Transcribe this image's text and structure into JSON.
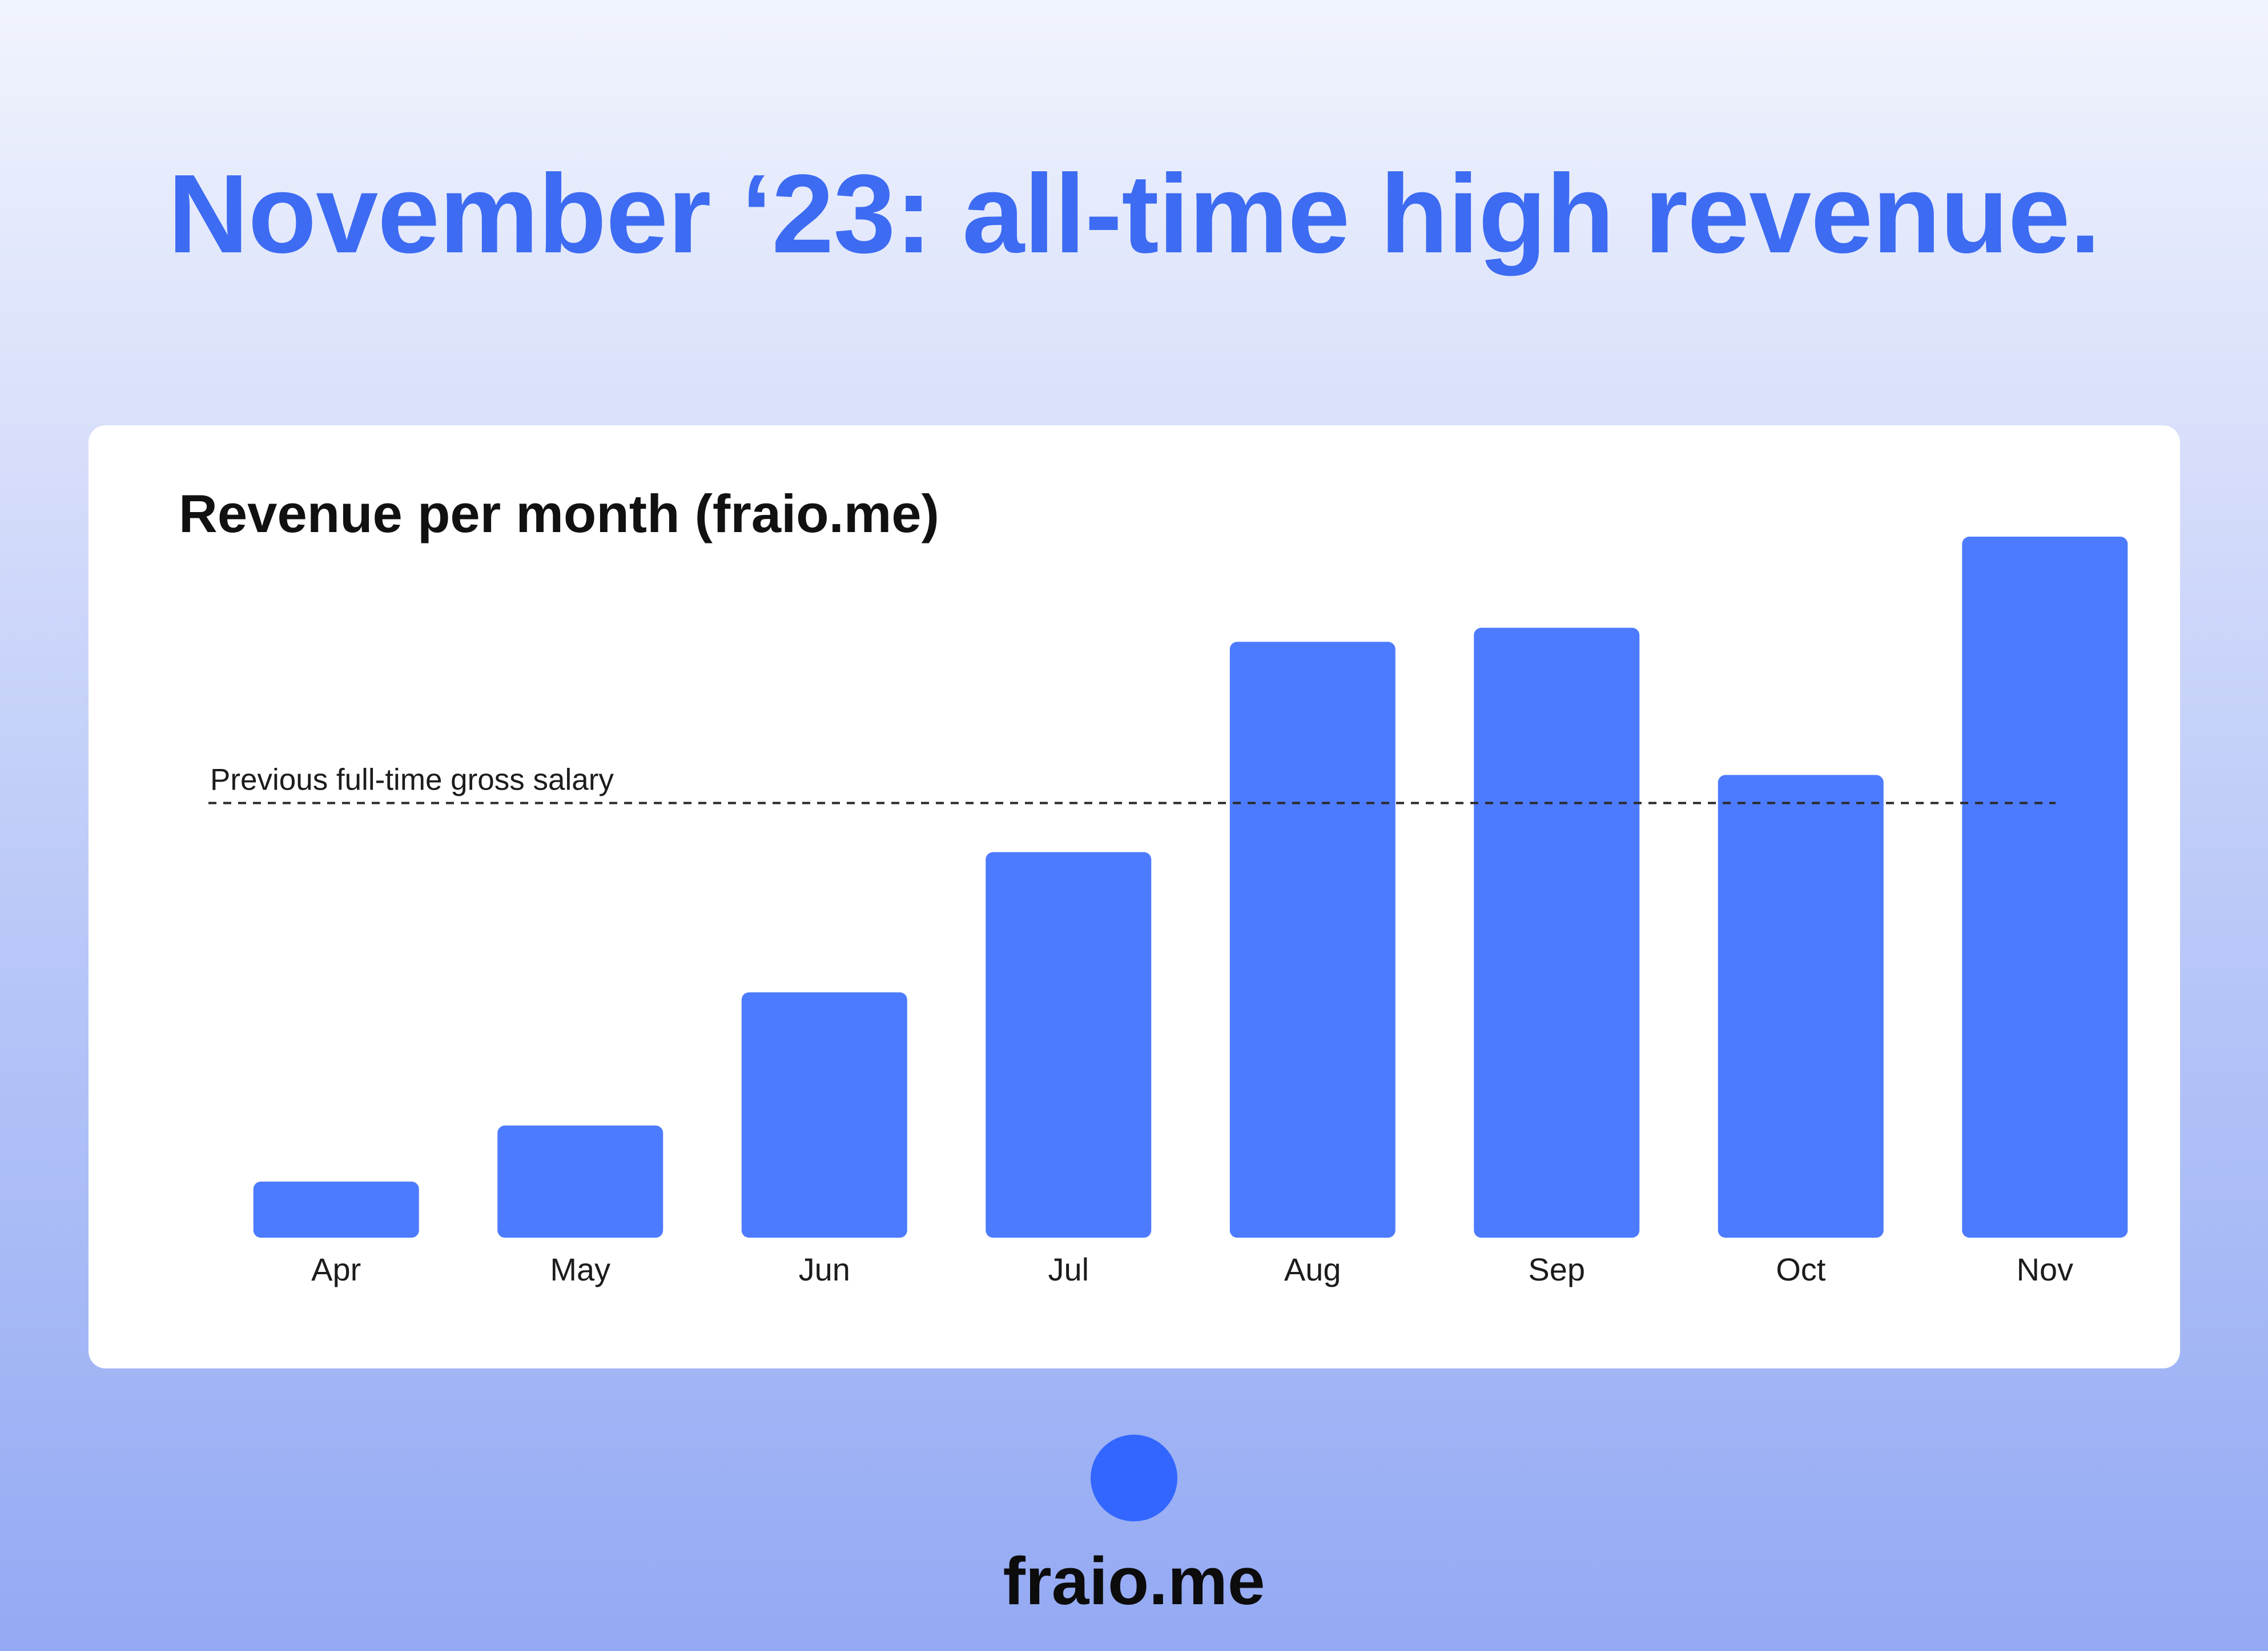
{
  "headline": "November ‘23: all-time high revenue.",
  "brand": {
    "name": "fraio.me",
    "icon": "circle-icon",
    "color": "#3366ff"
  },
  "colors": {
    "accent": "#3d6bf2",
    "bar": "#4d7bff",
    "card": "#ffffff"
  },
  "chart_data": {
    "type": "bar",
    "title": "Revenue per month (fraio.me)",
    "xlabel": "",
    "ylabel": "",
    "categories": [
      "Apr",
      "May",
      "Jun",
      "Jul",
      "Aug",
      "Sep",
      "Oct",
      "Nov"
    ],
    "values": [
      8,
      16,
      35,
      55,
      85,
      87,
      66,
      100
    ],
    "ylim": [
      0,
      100
    ],
    "y_axis_visible": false,
    "grid": false,
    "reference_line": {
      "label": "Previous full-time gross salary",
      "value": 62,
      "style": "dashed"
    }
  }
}
